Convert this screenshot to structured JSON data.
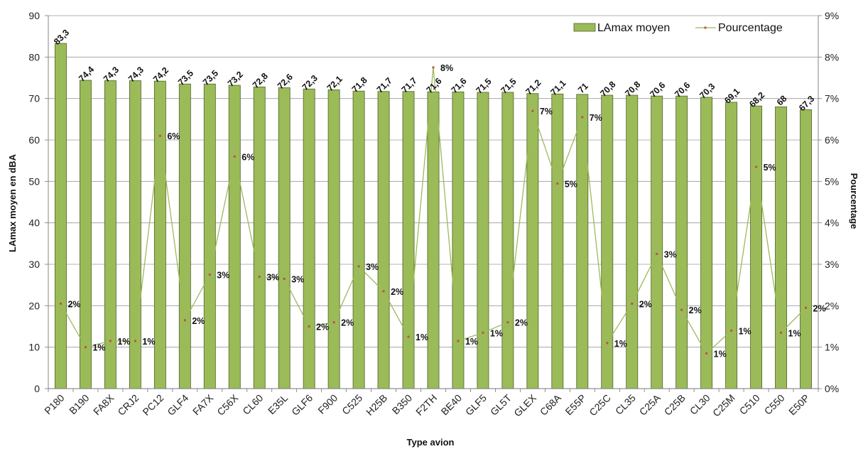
{
  "chart_data": {
    "type": "bar",
    "title": "",
    "xlabel": "Type avion",
    "ylabel": "LAmax moyen en dBA",
    "y2label": "Pourcentage",
    "ylim": [
      0,
      90
    ],
    "y2lim": [
      0,
      9
    ],
    "yticks": [
      "0",
      "10",
      "20",
      "30",
      "40",
      "50",
      "60",
      "70",
      "80",
      "90"
    ],
    "y2ticks": [
      "0%",
      "1%",
      "2%",
      "3%",
      "4%",
      "5%",
      "6%",
      "7%",
      "8%",
      "9%"
    ],
    "grid": true,
    "legend_position": "top-right",
    "categories": [
      "P180",
      "B190",
      "FA8X",
      "CRJ2",
      "PC12",
      "GLF4",
      "FA7X",
      "C56X",
      "CL60",
      "E35L",
      "GLF6",
      "F900",
      "C525",
      "H25B",
      "B350",
      "F2TH",
      "BE40",
      "GLF5",
      "GL5T",
      "GLEX",
      "C68A",
      "E55P",
      "C25C",
      "CL35",
      "C25A",
      "C25B",
      "CL30",
      "C25M",
      "C510",
      "C550",
      "E50P"
    ],
    "series": [
      {
        "name": "LAmax moyen",
        "kind": "bar",
        "color": "#9bbb59",
        "values": [
          83.3,
          74.4,
          74.3,
          74.3,
          74.2,
          73.5,
          73.5,
          73.2,
          72.8,
          72.6,
          72.3,
          72.1,
          71.8,
          71.7,
          71.7,
          71.6,
          71.6,
          71.5,
          71.5,
          71.2,
          71.1,
          71,
          70.8,
          70.8,
          70.6,
          70.6,
          70.3,
          69.1,
          68.2,
          68,
          67.3
        ],
        "labels": [
          "83,3",
          "74,4",
          "74,3",
          "74,3",
          "74,2",
          "73,5",
          "73,5",
          "73,2",
          "72,8",
          "72,6",
          "72,3",
          "72,1",
          "71,8",
          "71,7",
          "71,7",
          "71,6",
          "71,6",
          "71,5",
          "71,5",
          "71,2",
          "71,1",
          "71",
          "70,8",
          "70,8",
          "70,6",
          "70,6",
          "70,3",
          "69,1",
          "68,2",
          "68",
          "67,3"
        ]
      },
      {
        "name": "Pourcentage",
        "kind": "line",
        "axis": "right",
        "color": "#9bbb59",
        "marker_color": "#c0504d",
        "values": [
          2.05,
          1.0,
          1.15,
          1.15,
          6.1,
          1.65,
          2.75,
          5.6,
          2.7,
          2.65,
          1.5,
          1.6,
          2.95,
          2.35,
          1.25,
          7.75,
          1.15,
          1.35,
          1.6,
          6.7,
          4.95,
          6.55,
          1.1,
          2.05,
          3.25,
          1.9,
          0.85,
          1.4,
          5.35,
          1.35,
          1.95
        ],
        "labels": [
          "2%",
          "1%",
          "1%",
          "1%",
          "6%",
          "2%",
          "3%",
          "6%",
          "3%",
          "3%",
          "2%",
          "2%",
          "3%",
          "2%",
          "1%",
          "8%",
          "1%",
          "1%",
          "2%",
          "7%",
          "5%",
          "7%",
          "1%",
          "2%",
          "3%",
          "2%",
          "1%",
          "1%",
          "5%",
          "1%",
          "2%"
        ]
      }
    ]
  }
}
